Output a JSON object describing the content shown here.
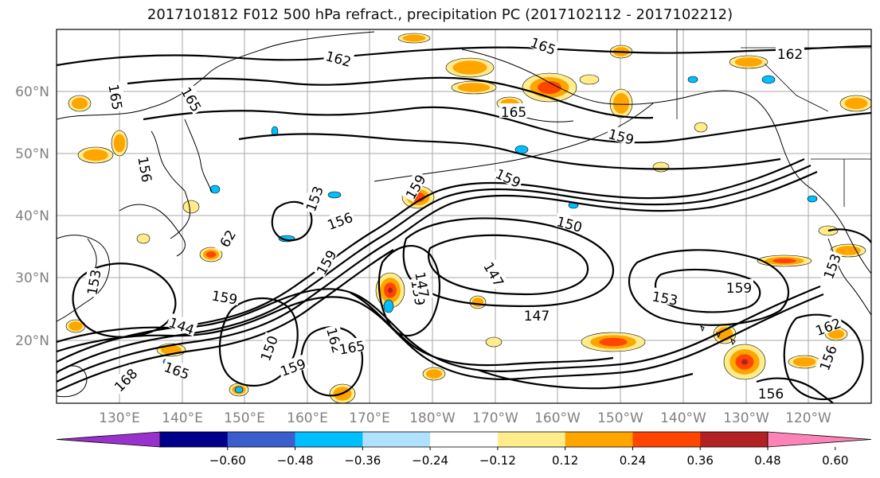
{
  "title": "2017101812 F012 500 hPa refract., precipitation PC (2017102112 - 2017102212)",
  "map": {
    "lat_labels": [
      "60°N",
      "50°N",
      "40°N",
      "30°N",
      "20°N"
    ],
    "lon_labels": [
      "130°E",
      "140°E",
      "150°E",
      "160°E",
      "170°E",
      "180°W",
      "170°W",
      "160°W",
      "150°W",
      "140°W",
      "130°W",
      "120°W"
    ],
    "contour_labels": [
      {
        "label": "162"
      },
      {
        "label": "165"
      },
      {
        "label": "165"
      },
      {
        "label": "165"
      },
      {
        "label": "165"
      },
      {
        "label": "159"
      },
      {
        "label": "162"
      },
      {
        "label": "159"
      },
      {
        "label": "159"
      },
      {
        "label": "150"
      },
      {
        "label": "153"
      },
      {
        "label": "156"
      },
      {
        "label": "159"
      },
      {
        "label": "62"
      },
      {
        "label": "159"
      },
      {
        "label": "153"
      },
      {
        "label": "144"
      },
      {
        "label": "147"
      },
      {
        "label": "147"
      },
      {
        "label": "153"
      },
      {
        "label": "159"
      },
      {
        "label": "147"
      },
      {
        "label": "162"
      },
      {
        "label": "165"
      },
      {
        "label": "159"
      },
      {
        "label": "168"
      },
      {
        "label": "165"
      },
      {
        "label": "156"
      },
      {
        "label": "150"
      },
      {
        "label": "159"
      },
      {
        "label": "156"
      },
      {
        "label": "153"
      },
      {
        "label": "156"
      },
      {
        "label": "162"
      }
    ]
  },
  "colorbar": {
    "tick_labels": [
      "−0.60",
      "−0.48",
      "−0.36",
      "−0.24",
      "−0.12",
      "0.12",
      "0.24",
      "0.36",
      "0.48",
      "0.60"
    ],
    "colors": [
      "#9932cc",
      "#00008b",
      "#3a5fcd",
      "#00bfff",
      "#b0e2ff",
      "#ffffff",
      "#ffec8b",
      "#ffa500",
      "#ff4500",
      "#b22222",
      "#ff83b6"
    ]
  },
  "colors": {
    "positive_light": "#ffec8b",
    "positive_mid": "#ffa500",
    "positive_strong": "#ff4500",
    "positive_max": "#b22222",
    "negative_light": "#b0e2ff",
    "negative_mid": "#00bfff",
    "contour": "#000000",
    "grid": "#808080",
    "axis_label": "#808080"
  }
}
